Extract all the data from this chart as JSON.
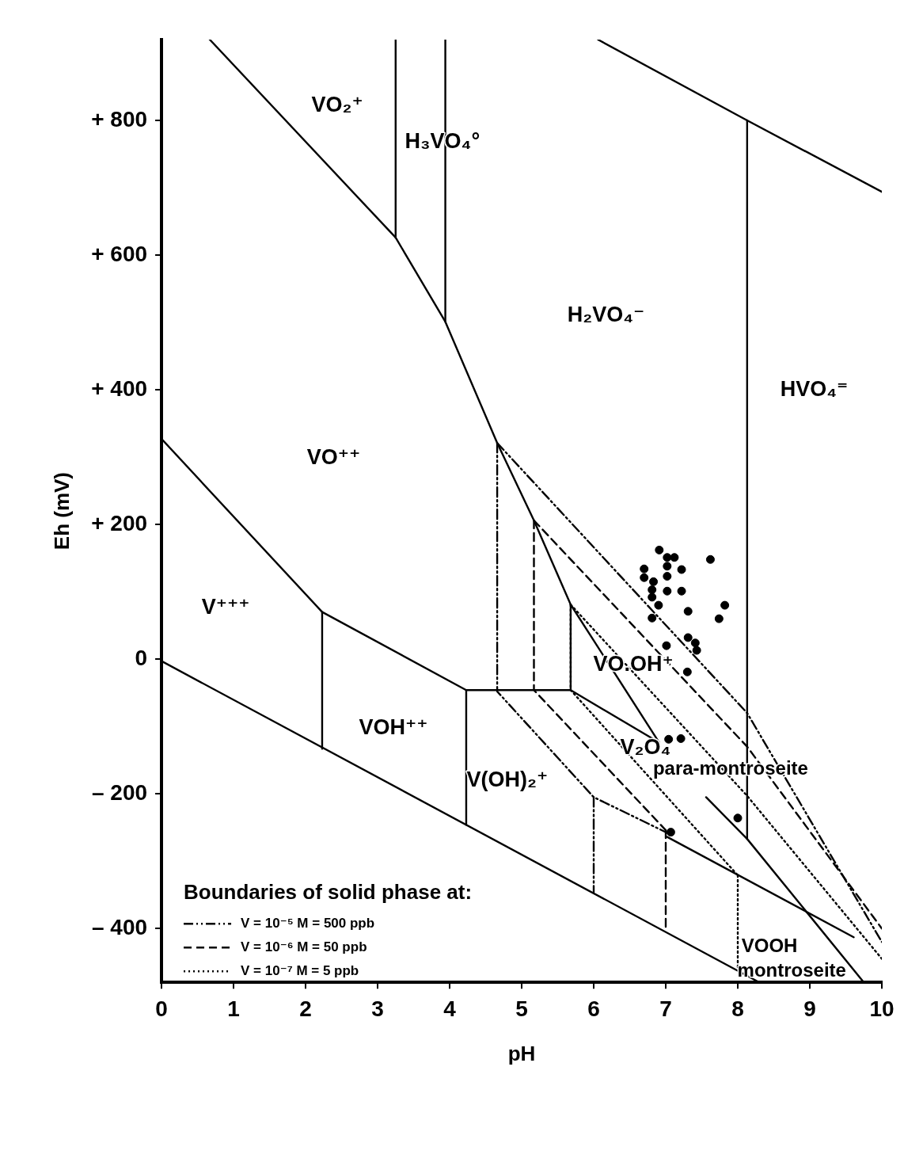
{
  "chart_data": {
    "type": "line",
    "xlabel": "pH",
    "ylabel": "Eh (mV)",
    "legend_title": "Boundaries of solid phase at:",
    "xlim": [
      0,
      10
    ],
    "xticks": [
      0,
      1,
      2,
      3,
      4,
      5,
      6,
      7,
      8,
      9,
      10
    ],
    "ylim": [
      -480,
      920
    ],
    "yticks": [
      {
        "value": -400,
        "label": "– 400"
      },
      {
        "value": -200,
        "label": "– 200"
      },
      0,
      {
        "value": 200,
        "label": "+ 200"
      },
      {
        "value": 400,
        "label": "+ 400"
      },
      {
        "value": 600,
        "label": "+ 600"
      },
      {
        "value": 800,
        "label": "+ 800"
      }
    ],
    "grid": false,
    "legend": "bottom left",
    "series": [
      {
        "color": "#000000",
        "line_style": "solid",
        "x": [
          6.06,
          8.13,
          10
        ],
        "values": [
          920,
          800,
          694
        ]
      },
      {
        "color": "#000000",
        "line_style": "solid",
        "x": [
          8.13,
          8.13
        ],
        "values": [
          800,
          -267
        ]
      },
      {
        "color": "#000000",
        "line_style": "solid",
        "x": [
          0,
          8.3
        ],
        "values": [
          -3,
          -480
        ]
      },
      {
        "color": "#000000",
        "line_style": "solid",
        "x": [
          0.67,
          3.25,
          3.94,
          4.66,
          5.17,
          5.68,
          6.91
        ],
        "values": [
          920,
          626,
          501,
          321,
          206,
          81,
          -124
        ]
      },
      {
        "color": "#000000",
        "line_style": "solid",
        "x": [
          3.25,
          3.25
        ],
        "values": [
          920,
          626
        ]
      },
      {
        "color": "#000000",
        "line_style": "solid",
        "x": [
          3.94,
          3.94
        ],
        "values": [
          920,
          501
        ]
      },
      {
        "color": "#000000",
        "line_style": "solid",
        "x": [
          0,
          2.23,
          4.23,
          5.68,
          6.91
        ],
        "values": [
          327,
          70,
          -46,
          -46,
          -124
        ]
      },
      {
        "color": "#000000",
        "line_style": "solid",
        "x": [
          2.23,
          2.23
        ],
        "values": [
          70,
          -133
        ]
      },
      {
        "color": "#000000",
        "line_style": "solid",
        "x": [
          4.23,
          4.23
        ],
        "values": [
          -46,
          -246
        ]
      },
      {
        "color": "#000000",
        "line_style": "solid",
        "x": [
          5.68,
          5.68
        ],
        "values": [
          81,
          -46
        ]
      },
      {
        "color": "#000000",
        "line_style": "solid",
        "x": [
          7.56,
          8.13,
          9.75
        ],
        "values": [
          -205,
          -267,
          -480
        ]
      },
      {
        "color": "#000000",
        "line_style": "solid",
        "x": [
          7.02,
          9.61
        ],
        "values": [
          -264,
          -413
        ]
      },
      {
        "name": "V = 10⁻⁵ M = 500 ppb",
        "color": "#000000",
        "line_style": "dashdot",
        "x": [
          4.66,
          8.13,
          10
        ],
        "values": [
          321,
          -80,
          -420
        ]
      },
      {
        "color": "#000000",
        "line_style": "dashdot",
        "x": [
          4.66,
          4.66,
          6.0,
          7.02
        ],
        "values": [
          321,
          -48,
          -205,
          -258
        ]
      },
      {
        "color": "#000000",
        "line_style": "dashdot",
        "x": [
          6.0,
          6.0
        ],
        "values": [
          -205,
          -346
        ]
      },
      {
        "name": "V = 10⁻⁶ M = 50 ppb",
        "color": "#000000",
        "line_style": "dashed",
        "x": [
          5.17,
          8.13,
          10
        ],
        "values": [
          206,
          -130,
          -400
        ]
      },
      {
        "color": "#000000",
        "line_style": "dashed",
        "x": [
          5.17,
          5.17,
          7.0
        ],
        "values": [
          206,
          -46,
          -254
        ]
      },
      {
        "color": "#000000",
        "line_style": "dashed",
        "x": [
          7.0,
          7.0
        ],
        "values": [
          -254,
          -403
        ]
      },
      {
        "name": "V = 10⁻⁷ M = 5 ppb",
        "color": "#000000",
        "line_style": "dotted",
        "x": [
          5.68,
          8.13,
          10
        ],
        "values": [
          81,
          -203,
          -445
        ]
      },
      {
        "color": "#000000",
        "line_style": "dotted",
        "x": [
          5.68,
          5.68,
          8.0
        ],
        "values": [
          81,
          -46,
          -321
        ]
      },
      {
        "color": "#000000",
        "line_style": "dotted",
        "x": [
          8.0,
          8.0
        ],
        "values": [
          -321,
          -461
        ]
      },
      {
        "type": "scatter",
        "color": "#000000",
        "marker": "circle",
        "x": [
          6.91,
          7.02,
          7.12,
          7.62,
          6.7,
          7.02,
          7.22,
          6.7,
          6.83,
          7.02,
          6.81,
          7.02,
          7.22,
          6.81,
          6.9,
          7.82,
          7.31,
          7.74,
          6.81,
          7.31,
          7.41,
          7.43,
          7.01
        ],
        "values": [
          162,
          151,
          151,
          148,
          134,
          138,
          133,
          121,
          115,
          123,
          103,
          101,
          101,
          92,
          80,
          80,
          71,
          60,
          61,
          32,
          24,
          13,
          20
        ]
      },
      {
        "type": "scatter",
        "color": "#000000",
        "marker": "circle",
        "x": [
          7.3,
          7.04,
          7.21,
          8.0,
          7.07
        ],
        "values": [
          -19,
          -119,
          -118,
          -236,
          -257
        ]
      }
    ],
    "annotations": [
      "VO₂⁺",
      "H₃VO₄°",
      "H₂VO₄⁻",
      "HVO₄⁼",
      "VO⁺⁺",
      "V⁺⁺⁺",
      "VOH⁺⁺",
      "V(OH)₂⁺",
      "VO.OH⁺",
      "V₂O₄",
      "para-montroseite",
      "VOOH",
      "montroseite"
    ]
  }
}
